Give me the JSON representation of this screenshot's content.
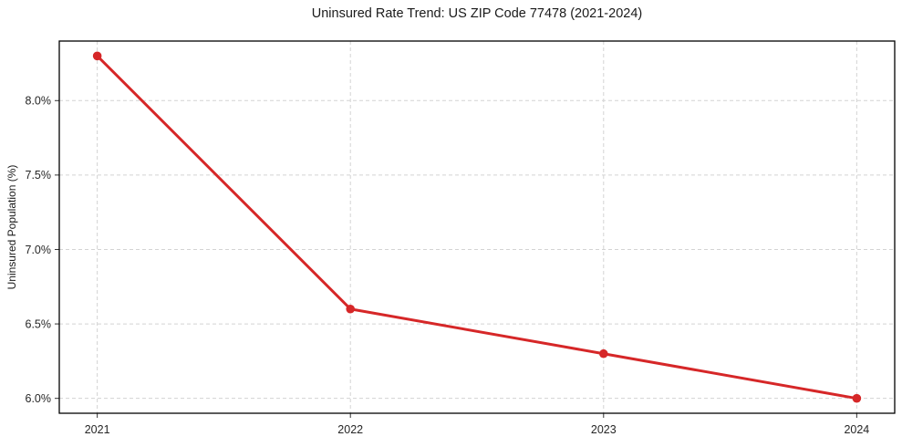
{
  "chart_data": {
    "type": "line",
    "title": "Uninsured Rate Trend: US ZIP Code 77478 (2021-2024)",
    "ylabel": "Uninsured Population (%)",
    "xlabel": "",
    "categories": [
      2021,
      2022,
      2023,
      2024
    ],
    "series": [
      {
        "name": "uninsured-rate",
        "values": [
          8.3,
          6.6,
          6.3,
          6.0
        ],
        "color": "#d62728",
        "marker": "circle"
      }
    ],
    "xticks": {
      "values": [
        2021,
        2022,
        2023,
        2024
      ],
      "labels": [
        "2021",
        "2022",
        "2023",
        "2024"
      ]
    },
    "yticks": {
      "values": [
        6.0,
        6.5,
        7.0,
        7.5,
        8.0
      ],
      "labels": [
        "6.0%",
        "6.5%",
        "7.0%",
        "7.5%",
        "8.0%"
      ]
    },
    "xlim": [
      2020.85,
      2024.15
    ],
    "ylim": [
      5.9,
      8.4
    ],
    "grid": true,
    "grid_style": "dashed",
    "legend": "none",
    "colors": {
      "line": "#d62728",
      "grid": "#d3d3d3",
      "spine": "#000000",
      "tick": "#333333",
      "text": "#262626",
      "background": "#ffffff"
    }
  }
}
